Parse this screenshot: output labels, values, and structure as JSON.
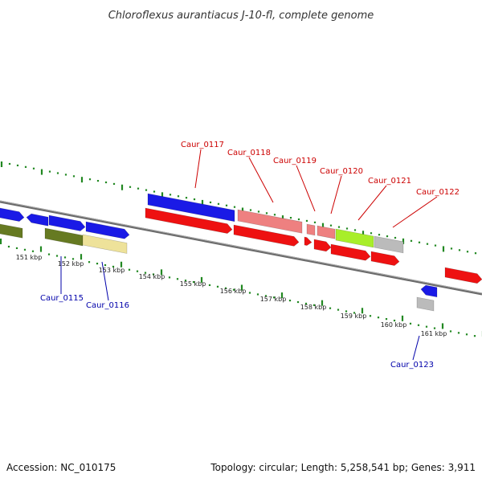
{
  "title": "Chloroflexus aurantiacus J-10-fl, complete genome",
  "footer": {
    "accession": "Accession: NC_010175",
    "summary": "Topology: circular; Length: 5,258,541 bp; Genes: 3,911"
  },
  "colors": {
    "upper_label": "#cc0000",
    "lower_label": "#0000aa",
    "ticks": "#228822",
    "backbone": "#777777",
    "blue_gene": "#1a1ae6",
    "red_gene": "#ee1111",
    "salmon_gene": "#ee8080",
    "green_gene": "#667a22",
    "khaki_gene": "#eee29a",
    "lime_gene": "#a8ee2a",
    "gray_gene": "#bbbbbb"
  },
  "kbp_labels": [
    "151 kbp",
    "152 kbp",
    "153 kbp",
    "154 kbp",
    "155 kbp",
    "156 kbp",
    "157 kbp",
    "158 kbp",
    "159 kbp",
    "160 kbp",
    "161 kbp"
  ],
  "upper_labels": [
    "Caur_0117",
    "Caur_0118",
    "Caur_0119",
    "Caur_0120",
    "Caur_0121",
    "Caur_0122"
  ],
  "lower_labels": [
    "Caur_0115",
    "Caur_0116",
    "Caur_0123"
  ]
}
